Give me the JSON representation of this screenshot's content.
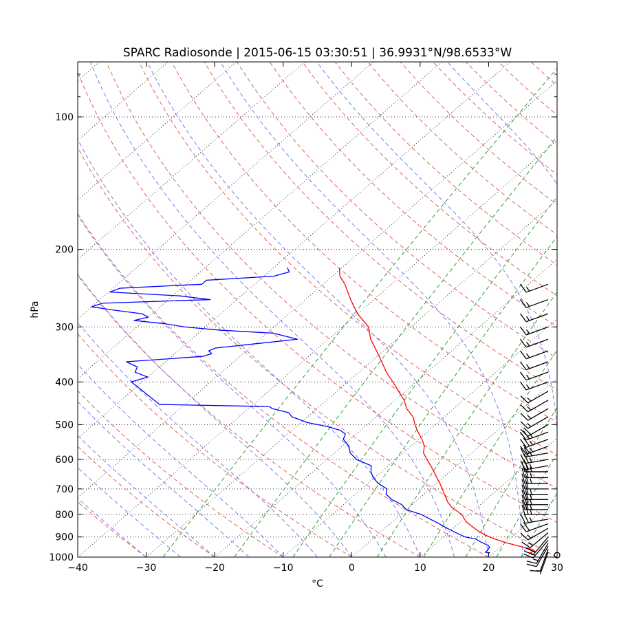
{
  "chart_data": {
    "type": "line",
    "title": "SPARC Radiosonde | 2015-06-15 03:30:51 | 36.9931°N/98.6533°W",
    "xlabel": "°C",
    "ylabel": "hPa",
    "xlim": [
      -40,
      30
    ],
    "ylim": [
      1000,
      75
    ],
    "y_scale": "log",
    "skew": true,
    "x_ticks": [
      -40,
      -30,
      -20,
      -10,
      0,
      10,
      20,
      30
    ],
    "x_tick_labels": [
      "−40",
      "−30",
      "−20",
      "−10",
      "0",
      "10",
      "20",
      "30"
    ],
    "y_ticks": [
      100,
      200,
      300,
      400,
      500,
      600,
      700,
      800,
      900,
      1000
    ],
    "y_tick_labels": [
      "100",
      "200",
      "300",
      "400",
      "500",
      "600",
      "700",
      "800",
      "900",
      "1000"
    ],
    "grid": true,
    "colors": {
      "temperature": "#ff0000",
      "dewpoint": "#0000ff",
      "dry_adiabat": "#e06060",
      "moist_adiabat": "#7a7aee",
      "mixing_ratio": "#2e9e2e",
      "isotherm": "#333333",
      "barb": "#000000"
    },
    "series": [
      {
        "key": "temperature",
        "pressure": [
          978,
          970,
          960,
          950,
          940,
          930,
          920,
          905,
          890,
          870,
          850,
          830,
          800,
          770,
          750,
          720,
          700,
          680,
          660,
          640,
          620,
          600,
          580,
          560,
          540,
          520,
          500,
          480,
          460,
          440,
          420,
          400,
          380,
          360,
          340,
          320,
          300,
          280,
          260,
          240,
          230,
          220
        ],
        "values": [
          25.2,
          25.8,
          25.0,
          23.5,
          22.0,
          20.5,
          19.2,
          17.3,
          15.7,
          13.9,
          12.3,
          10.7,
          8.9,
          6.2,
          4.8,
          3.0,
          1.8,
          0.5,
          -0.9,
          -2.3,
          -3.8,
          -5.4,
          -7.0,
          -8.0,
          -9.5,
          -11.3,
          -13.0,
          -14.6,
          -16.9,
          -18.7,
          -21.0,
          -23.4,
          -26.0,
          -28.4,
          -31.0,
          -33.8,
          -36.2,
          -40.0,
          -43.4,
          -46.8,
          -48.9,
          -50.4
        ]
      },
      {
        "key": "dewpoint",
        "pressure": [
          978,
          975,
          965,
          950,
          940,
          925,
          910,
          900,
          880,
          860,
          840,
          820,
          800,
          780,
          760,
          740,
          720,
          700,
          680,
          660,
          640,
          620,
          600,
          580,
          560,
          540,
          525,
          515,
          505,
          495,
          480,
          470,
          460,
          455,
          450,
          440,
          420,
          400,
          390,
          380,
          370,
          360,
          350,
          345,
          340,
          335,
          330,
          320,
          310,
          305,
          300,
          295,
          290,
          285,
          280,
          275,
          270,
          265,
          260,
          255,
          250,
          245,
          240,
          235,
          230,
          225,
          220
        ],
        "values": [
          19.5,
          18.7,
          18.7,
          18.5,
          17.9,
          16.4,
          15.1,
          13.2,
          11.1,
          9.1,
          7.2,
          5.1,
          3.0,
          0.0,
          -1.5,
          -3.8,
          -5.5,
          -6.3,
          -8.5,
          -10.2,
          -11.5,
          -12.5,
          -15.7,
          -17.7,
          -19.0,
          -21.0,
          -21.6,
          -23.0,
          -25.5,
          -29.0,
          -32.3,
          -33.4,
          -36.5,
          -37.3,
          -53.7,
          -55.2,
          -58.3,
          -61.6,
          -60.0,
          -62.7,
          -63.2,
          -65.7,
          -55.5,
          -54.6,
          -55.5,
          -55.0,
          -51.5,
          -44.5,
          -49.0,
          -57.5,
          -63.0,
          -66.5,
          -71.5,
          -70.0,
          -71.5,
          -76.0,
          -80.0,
          -79.0,
          -63.9,
          -69.0,
          -79.8,
          -79.0,
          -67.7,
          -67.7,
          -58.5,
          -57.0,
          -58.0
        ]
      }
    ],
    "wind_barbs": {
      "pressure": [
        990,
        975,
        960,
        945,
        930,
        915,
        900,
        880,
        860,
        840,
        820,
        800,
        780,
        760,
        740,
        720,
        700,
        680,
        660,
        640,
        620,
        600,
        580,
        560,
        540,
        520,
        500,
        480,
        460,
        440,
        420,
        400,
        380,
        360,
        340,
        320,
        300,
        280,
        260,
        240
      ],
      "speed_kt": [
        0,
        5,
        10,
        10,
        15,
        15,
        20,
        15,
        15,
        20,
        25,
        25,
        25,
        25,
        25,
        25,
        20,
        25,
        25,
        25,
        25,
        25,
        25,
        25,
        25,
        25,
        20,
        15,
        15,
        15,
        15,
        15,
        15,
        15,
        15,
        15,
        15,
        15,
        15,
        15
      ],
      "direction_deg": [
        0,
        200,
        200,
        210,
        210,
        220,
        220,
        230,
        240,
        250,
        260,
        270,
        270,
        270,
        270,
        270,
        270,
        270,
        270,
        270,
        260,
        260,
        260,
        250,
        250,
        250,
        240,
        240,
        240,
        240,
        240,
        250,
        250,
        250,
        250,
        250,
        250,
        250,
        250,
        250
      ]
    }
  }
}
